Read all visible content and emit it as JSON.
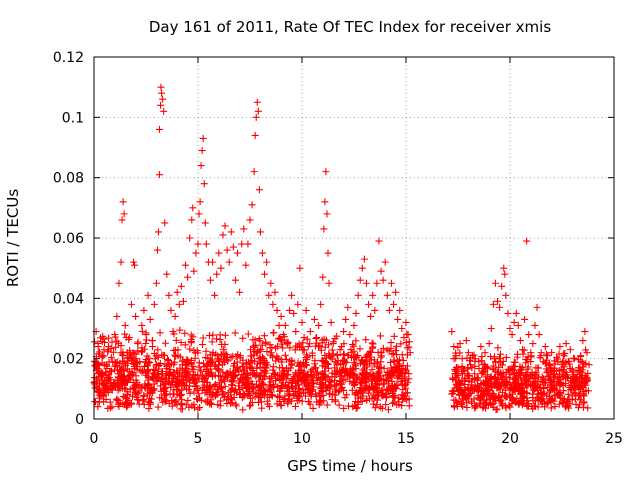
{
  "chart_data": {
    "type": "scatter",
    "title": "Day 161 of 2011, Rate Of TEC Index for receiver xmis",
    "xlabel": "GPS time / hours",
    "ylabel": "ROTI / TECUs",
    "xlim": [
      0,
      25
    ],
    "ylim": [
      0,
      0.12
    ],
    "x_ticks": [
      0,
      5,
      10,
      15,
      20,
      25
    ],
    "y_ticks": [
      0,
      0.02,
      0.04,
      0.06,
      0.08,
      0.1,
      0.12
    ],
    "x_tick_labels": [
      "0",
      "5",
      "10",
      "15",
      "20",
      "25"
    ],
    "y_tick_labels": [
      "0",
      "0.02",
      "0.04",
      "0.06",
      "0.08",
      "0.1",
      "0.12"
    ],
    "grid": true,
    "marker": "+",
    "color": "#ff0000",
    "series": [
      {
        "points": [
          [
            0.0,
            0.012
          ],
          [
            0.1,
            0.029
          ],
          [
            0.1,
            0.018
          ],
          [
            0.2,
            0.024
          ],
          [
            0.2,
            0.009
          ],
          [
            0.3,
            0.015
          ],
          [
            0.4,
            0.021
          ],
          [
            0.5,
            0.011
          ],
          [
            0.6,
            0.018
          ],
          [
            0.7,
            0.024
          ],
          [
            0.8,
            0.013
          ],
          [
            0.9,
            0.019
          ],
          [
            1.0,
            0.028
          ],
          [
            1.1,
            0.034
          ],
          [
            1.2,
            0.045
          ],
          [
            1.3,
            0.052
          ],
          [
            1.35,
            0.066
          ],
          [
            1.4,
            0.072
          ],
          [
            1.45,
            0.068
          ],
          [
            1.5,
            0.031
          ],
          [
            1.6,
            0.022
          ],
          [
            1.7,
            0.027
          ],
          [
            1.8,
            0.038
          ],
          [
            1.9,
            0.052
          ],
          [
            1.95,
            0.051
          ],
          [
            2.0,
            0.034
          ],
          [
            2.1,
            0.025
          ],
          [
            2.2,
            0.019
          ],
          [
            2.3,
            0.031
          ],
          [
            2.4,
            0.036
          ],
          [
            2.5,
            0.028
          ],
          [
            2.6,
            0.041
          ],
          [
            2.7,
            0.033
          ],
          [
            2.8,
            0.026
          ],
          [
            2.9,
            0.038
          ],
          [
            3.0,
            0.045
          ],
          [
            3.05,
            0.056
          ],
          [
            3.1,
            0.062
          ],
          [
            3.15,
            0.081
          ],
          [
            3.15,
            0.096
          ],
          [
            3.2,
            0.104
          ],
          [
            3.22,
            0.11
          ],
          [
            3.25,
            0.108
          ],
          [
            3.3,
            0.106
          ],
          [
            3.35,
            0.102
          ],
          [
            3.4,
            0.065
          ],
          [
            3.5,
            0.048
          ],
          [
            3.6,
            0.041
          ],
          [
            3.7,
            0.036
          ],
          [
            3.8,
            0.029
          ],
          [
            3.9,
            0.034
          ],
          [
            4.0,
            0.042
          ],
          [
            4.1,
            0.038
          ],
          [
            4.2,
            0.044
          ],
          [
            4.3,
            0.039
          ],
          [
            4.4,
            0.051
          ],
          [
            4.5,
            0.047
          ],
          [
            4.6,
            0.06
          ],
          [
            4.7,
            0.066
          ],
          [
            4.75,
            0.07
          ],
          [
            4.8,
            0.049
          ],
          [
            4.9,
            0.055
          ],
          [
            5.0,
            0.058
          ],
          [
            5.05,
            0.068
          ],
          [
            5.1,
            0.072
          ],
          [
            5.15,
            0.084
          ],
          [
            5.2,
            0.089
          ],
          [
            5.25,
            0.093
          ],
          [
            5.3,
            0.078
          ],
          [
            5.35,
            0.065
          ],
          [
            5.4,
            0.058
          ],
          [
            5.5,
            0.052
          ],
          [
            5.6,
            0.046
          ],
          [
            5.7,
            0.052
          ],
          [
            5.8,
            0.041
          ],
          [
            5.9,
            0.048
          ],
          [
            6.0,
            0.055
          ],
          [
            6.1,
            0.05
          ],
          [
            6.2,
            0.061
          ],
          [
            6.3,
            0.064
          ],
          [
            6.4,
            0.056
          ],
          [
            6.5,
            0.052
          ],
          [
            6.6,
            0.062
          ],
          [
            6.7,
            0.057
          ],
          [
            6.8,
            0.046
          ],
          [
            6.9,
            0.055
          ],
          [
            7.0,
            0.042
          ],
          [
            7.1,
            0.058
          ],
          [
            7.2,
            0.063
          ],
          [
            7.3,
            0.051
          ],
          [
            7.4,
            0.058
          ],
          [
            7.5,
            0.066
          ],
          [
            7.6,
            0.071
          ],
          [
            7.7,
            0.082
          ],
          [
            7.75,
            0.094
          ],
          [
            7.8,
            0.1
          ],
          [
            7.85,
            0.105
          ],
          [
            7.9,
            0.102
          ],
          [
            7.95,
            0.076
          ],
          [
            8.0,
            0.062
          ],
          [
            8.1,
            0.055
          ],
          [
            8.2,
            0.048
          ],
          [
            8.3,
            0.052
          ],
          [
            8.4,
            0.041
          ],
          [
            8.5,
            0.045
          ],
          [
            8.6,
            0.038
          ],
          [
            8.7,
            0.042
          ],
          [
            8.8,
            0.036
          ],
          [
            8.9,
            0.031
          ],
          [
            9.0,
            0.034
          ],
          [
            9.1,
            0.028
          ],
          [
            9.2,
            0.031
          ],
          [
            9.3,
            0.025
          ],
          [
            9.4,
            0.036
          ],
          [
            9.5,
            0.041
          ],
          [
            9.6,
            0.035
          ],
          [
            9.7,
            0.029
          ],
          [
            9.8,
            0.038
          ],
          [
            9.9,
            0.05
          ],
          [
            10.0,
            0.032
          ],
          [
            10.1,
            0.027
          ],
          [
            10.2,
            0.036
          ],
          [
            10.3,
            0.024
          ],
          [
            10.4,
            0.029
          ],
          [
            10.5,
            0.021
          ],
          [
            10.6,
            0.033
          ],
          [
            10.7,
            0.027
          ],
          [
            10.8,
            0.031
          ],
          [
            10.9,
            0.038
          ],
          [
            11.0,
            0.047
          ],
          [
            11.05,
            0.063
          ],
          [
            11.1,
            0.072
          ],
          [
            11.15,
            0.082
          ],
          [
            11.2,
            0.068
          ],
          [
            11.25,
            0.055
          ],
          [
            11.3,
            0.045
          ],
          [
            11.4,
            0.032
          ],
          [
            11.5,
            0.025
          ],
          [
            11.6,
            0.019
          ],
          [
            11.7,
            0.021
          ],
          [
            11.8,
            0.016
          ],
          [
            11.9,
            0.024
          ],
          [
            12.0,
            0.029
          ],
          [
            12.1,
            0.033
          ],
          [
            12.2,
            0.037
          ],
          [
            12.3,
            0.028
          ],
          [
            12.4,
            0.022
          ],
          [
            12.5,
            0.031
          ],
          [
            12.6,
            0.035
          ],
          [
            12.7,
            0.041
          ],
          [
            12.8,
            0.046
          ],
          [
            12.9,
            0.05
          ],
          [
            13.0,
            0.053
          ],
          [
            13.1,
            0.045
          ],
          [
            13.2,
            0.038
          ],
          [
            13.3,
            0.034
          ],
          [
            13.4,
            0.041
          ],
          [
            13.5,
            0.036
          ],
          [
            13.6,
            0.045
          ],
          [
            13.7,
            0.059
          ],
          [
            13.8,
            0.049
          ],
          [
            13.9,
            0.046
          ],
          [
            14.0,
            0.052
          ],
          [
            14.1,
            0.041
          ],
          [
            14.2,
            0.036
          ],
          [
            14.3,
            0.045
          ],
          [
            14.4,
            0.038
          ],
          [
            14.5,
            0.042
          ],
          [
            14.6,
            0.033
          ],
          [
            14.7,
            0.036
          ],
          [
            14.8,
            0.03
          ],
          [
            14.9,
            0.027
          ],
          [
            15.0,
            0.032
          ],
          [
            15.1,
            0.028
          ],
          [
            15.2,
            0.022
          ],
          [
            17.2,
            0.029
          ],
          [
            17.3,
            0.024
          ],
          [
            17.4,
            0.021
          ],
          [
            17.5,
            0.017
          ],
          [
            17.6,
            0.025
          ],
          [
            17.7,
            0.02
          ],
          [
            17.8,
            0.016
          ],
          [
            17.9,
            0.026
          ],
          [
            18.0,
            0.022
          ],
          [
            18.1,
            0.018
          ],
          [
            18.2,
            0.021
          ],
          [
            18.3,
            0.015
          ],
          [
            18.5,
            0.019
          ],
          [
            18.6,
            0.024
          ],
          [
            18.7,
            0.018
          ],
          [
            18.8,
            0.022
          ],
          [
            18.9,
            0.017
          ],
          [
            19.0,
            0.025
          ],
          [
            19.1,
            0.03
          ],
          [
            19.2,
            0.038
          ],
          [
            19.3,
            0.045
          ],
          [
            19.4,
            0.039
          ],
          [
            19.5,
            0.037
          ],
          [
            19.6,
            0.044
          ],
          [
            19.7,
            0.05
          ],
          [
            19.75,
            0.048
          ],
          [
            19.8,
            0.041
          ],
          [
            19.9,
            0.035
          ],
          [
            20.0,
            0.03
          ],
          [
            20.1,
            0.028
          ],
          [
            20.2,
            0.032
          ],
          [
            20.3,
            0.035
          ],
          [
            20.4,
            0.031
          ],
          [
            20.5,
            0.026
          ],
          [
            20.6,
            0.023
          ],
          [
            20.7,
            0.033
          ],
          [
            20.8,
            0.059
          ],
          [
            20.9,
            0.028
          ],
          [
            21.0,
            0.022
          ],
          [
            21.1,
            0.025
          ],
          [
            21.2,
            0.031
          ],
          [
            21.3,
            0.037
          ],
          [
            21.4,
            0.028
          ],
          [
            21.5,
            0.022
          ],
          [
            21.6,
            0.019
          ],
          [
            21.7,
            0.024
          ],
          [
            21.8,
            0.021
          ],
          [
            21.9,
            0.018
          ],
          [
            22.0,
            0.022
          ],
          [
            22.1,
            0.016
          ],
          [
            22.2,
            0.014
          ],
          [
            22.3,
            0.019
          ],
          [
            22.4,
            0.024
          ],
          [
            22.5,
            0.018
          ],
          [
            22.6,
            0.021
          ],
          [
            22.7,
            0.025
          ],
          [
            22.8,
            0.019
          ],
          [
            22.9,
            0.023
          ],
          [
            23.0,
            0.016
          ],
          [
            23.1,
            0.02
          ],
          [
            23.2,
            0.013
          ],
          [
            23.3,
            0.017
          ],
          [
            23.4,
            0.021
          ],
          [
            23.5,
            0.026
          ],
          [
            23.6,
            0.029
          ],
          [
            23.7,
            0.022
          ],
          [
            23.8,
            0.018
          ]
        ],
        "dense_band": [
          {
            "x": [
              0.0,
              15.2
            ],
            "y": [
              0.003,
              0.03
            ]
          },
          {
            "x": [
              17.2,
              23.8
            ],
            "y": [
              0.003,
              0.024
            ]
          }
        ]
      }
    ]
  }
}
